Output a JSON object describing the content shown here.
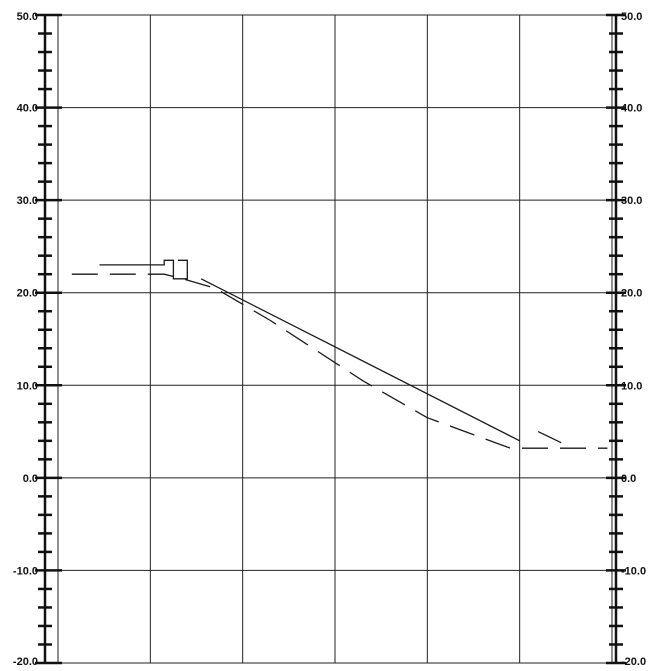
{
  "chart_data": {
    "type": "line",
    "title": "",
    "xlabel": "",
    "ylabel": "",
    "ylim": [
      -20,
      50
    ],
    "y_ticks": [
      50,
      40,
      30,
      20,
      10,
      0,
      -10,
      -20
    ],
    "y_tick_labels": [
      "50.0",
      "40.0",
      "30.0",
      "20.0",
      "10.0",
      "0.0",
      "-10.0",
      "-20.0"
    ],
    "right_y_tick_labels": [
      "50.0",
      "40.0",
      "30.0",
      "20.0",
      "10.0",
      "0.0",
      "-10.0",
      "-20.0"
    ],
    "xlim": [
      0,
      6
    ],
    "vertical_grid_x": [
      0,
      1,
      2,
      3,
      4,
      5,
      6
    ],
    "minor_ticks_per_major": 4,
    "grid": true,
    "series": [
      {
        "style": "solid",
        "color": "#1a1a1a",
        "points": [
          [
            0.45,
            23.0
          ],
          [
            1.15,
            23.0
          ],
          [
            1.15,
            23.5
          ],
          [
            1.25,
            23.5
          ],
          [
            1.25,
            21.5
          ],
          [
            1.4,
            21.5
          ],
          [
            1.4,
            23.5
          ],
          [
            1.3,
            23.5
          ]
        ]
      },
      {
        "style": "solid",
        "color": "#1a1a1a",
        "points": [
          [
            1.55,
            21.5
          ],
          [
            5.0,
            4.0
          ]
        ]
      },
      {
        "style": "dashed",
        "color": "#1a1a1a",
        "points": [
          [
            0.15,
            22.0
          ],
          [
            1.15,
            22.0
          ],
          [
            1.35,
            21.5
          ],
          [
            1.7,
            20.5
          ],
          [
            2.3,
            17.0
          ],
          [
            3.3,
            10.5
          ],
          [
            4.0,
            6.5
          ],
          [
            4.9,
            3.2
          ],
          [
            5.6,
            3.2
          ],
          [
            5.95,
            3.2
          ]
        ]
      },
      {
        "style": "dashed",
        "color": "#1a1a1a",
        "points": [
          [
            5.2,
            5.0
          ],
          [
            5.45,
            3.8
          ]
        ]
      }
    ]
  }
}
